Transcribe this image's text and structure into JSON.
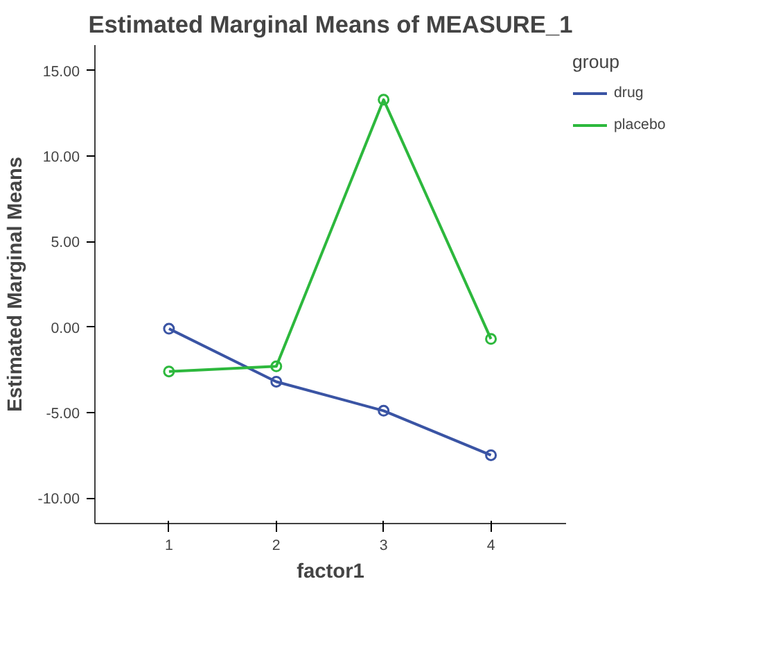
{
  "chart_data": {
    "type": "line",
    "title": "Estimated Marginal Means of MEASURE_1",
    "xlabel": "factor1",
    "ylabel": "Estimated Marginal Means",
    "legend_title": "group",
    "categories": [
      "1",
      "2",
      "3",
      "4"
    ],
    "series": [
      {
        "name": "drug",
        "color": "#3a54a4",
        "values": [
          -0.1,
          -3.2,
          -4.9,
          -7.5
        ]
      },
      {
        "name": "placebo",
        "color": "#2db83d",
        "values": [
          -2.6,
          -2.3,
          13.3,
          -0.7
        ]
      }
    ],
    "ylim": [
      -11.5,
      16.5
    ],
    "yticks": [
      {
        "value": -10,
        "label": "-10.00"
      },
      {
        "value": -5,
        "label": "-5.00"
      },
      {
        "value": 0,
        "label": "0.00"
      },
      {
        "value": 5,
        "label": "5.00"
      },
      {
        "value": 10,
        "label": "10.00"
      },
      {
        "value": 15,
        "label": "15.00"
      }
    ],
    "grid": false,
    "legend": "right",
    "marker": "circle",
    "line_style": "solid"
  }
}
